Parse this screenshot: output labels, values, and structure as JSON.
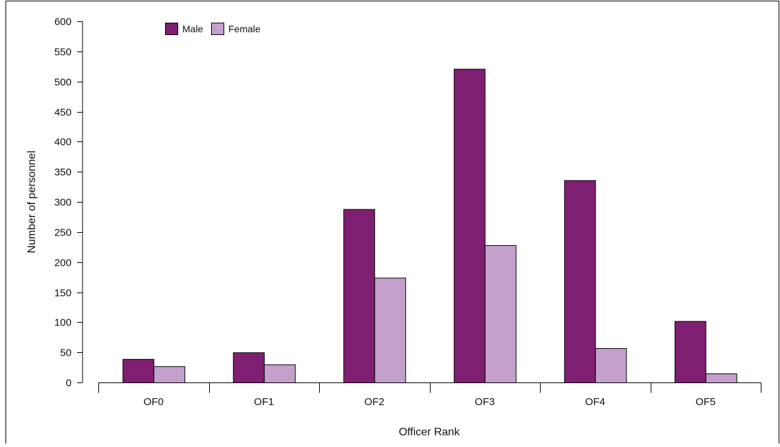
{
  "chart_data": {
    "type": "bar",
    "title": "",
    "xlabel": "Officer Rank",
    "ylabel": "Number of personnel",
    "categories": [
      "OF0",
      "OF1",
      "OF2",
      "OF3",
      "OF4",
      "OF5"
    ],
    "series": [
      {
        "name": "Male",
        "color": "#7f1f72",
        "values": [
          39,
          50,
          288,
          521,
          336,
          102
        ]
      },
      {
        "name": "Female",
        "color": "#c3a1cc",
        "values": [
          27,
          30,
          174,
          228,
          57,
          15
        ]
      }
    ],
    "ylim": [
      0,
      600
    ],
    "yticks": [
      0,
      50,
      100,
      150,
      200,
      250,
      300,
      350,
      400,
      450,
      500,
      550,
      600
    ],
    "grid": false,
    "legend_position": "top-left"
  }
}
